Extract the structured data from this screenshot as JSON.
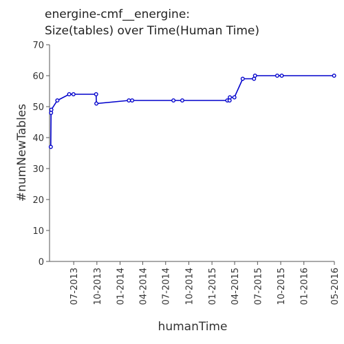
{
  "chart_data": {
    "type": "line",
    "title": "energine-cmf__energine:",
    "subtitle": "Size(tables) over Time(Human Time)",
    "xlabel": "humanTime",
    "ylabel": "#numNewTables",
    "xlim": [
      "2013-03-27",
      "2016-05-01"
    ],
    "ylim": [
      0,
      70
    ],
    "yticks": [
      0,
      10,
      20,
      30,
      40,
      50,
      60,
      70
    ],
    "xticks": [
      {
        "date": "2013-07-01",
        "label": "07-2013"
      },
      {
        "date": "2013-10-01",
        "label": "10-2013"
      },
      {
        "date": "2014-01-01",
        "label": "01-2014"
      },
      {
        "date": "2014-04-01",
        "label": "04-2014"
      },
      {
        "date": "2014-07-01",
        "label": "07-2014"
      },
      {
        "date": "2014-10-01",
        "label": "10-2014"
      },
      {
        "date": "2015-01-01",
        "label": "01-2015"
      },
      {
        "date": "2015-04-01",
        "label": "04-2015"
      },
      {
        "date": "2015-07-01",
        "label": "07-2015"
      },
      {
        "date": "2015-10-01",
        "label": "10-2015"
      },
      {
        "date": "2016-01-01",
        "label": "01-2016"
      },
      {
        "date": "2016-05-01",
        "label": "05-2016"
      }
    ],
    "grid": false,
    "series": [
      {
        "color": "#0000cc",
        "points": [
          {
            "x": "2013-04-01",
            "y": 37
          },
          {
            "x": "2013-04-02",
            "y": 48
          },
          {
            "x": "2013-04-03",
            "y": 49
          },
          {
            "x": "2013-04-27",
            "y": 52
          },
          {
            "x": "2013-06-13",
            "y": 54
          },
          {
            "x": "2013-06-30",
            "y": 54
          },
          {
            "x": "2013-09-28",
            "y": 54
          },
          {
            "x": "2013-09-29",
            "y": 51
          },
          {
            "x": "2014-02-05",
            "y": 52
          },
          {
            "x": "2014-02-18",
            "y": 52
          },
          {
            "x": "2014-08-01",
            "y": 52
          },
          {
            "x": "2014-09-05",
            "y": 52
          },
          {
            "x": "2015-03-03",
            "y": 52
          },
          {
            "x": "2015-03-12",
            "y": 52
          },
          {
            "x": "2015-03-13",
            "y": 53
          },
          {
            "x": "2015-03-31",
            "y": 53
          },
          {
            "x": "2015-05-03",
            "y": 59
          },
          {
            "x": "2015-06-17",
            "y": 59
          },
          {
            "x": "2015-06-21",
            "y": 60
          },
          {
            "x": "2015-09-17",
            "y": 60
          },
          {
            "x": "2015-10-05",
            "y": 60
          },
          {
            "x": "2016-04-30",
            "y": 60
          }
        ]
      }
    ]
  }
}
